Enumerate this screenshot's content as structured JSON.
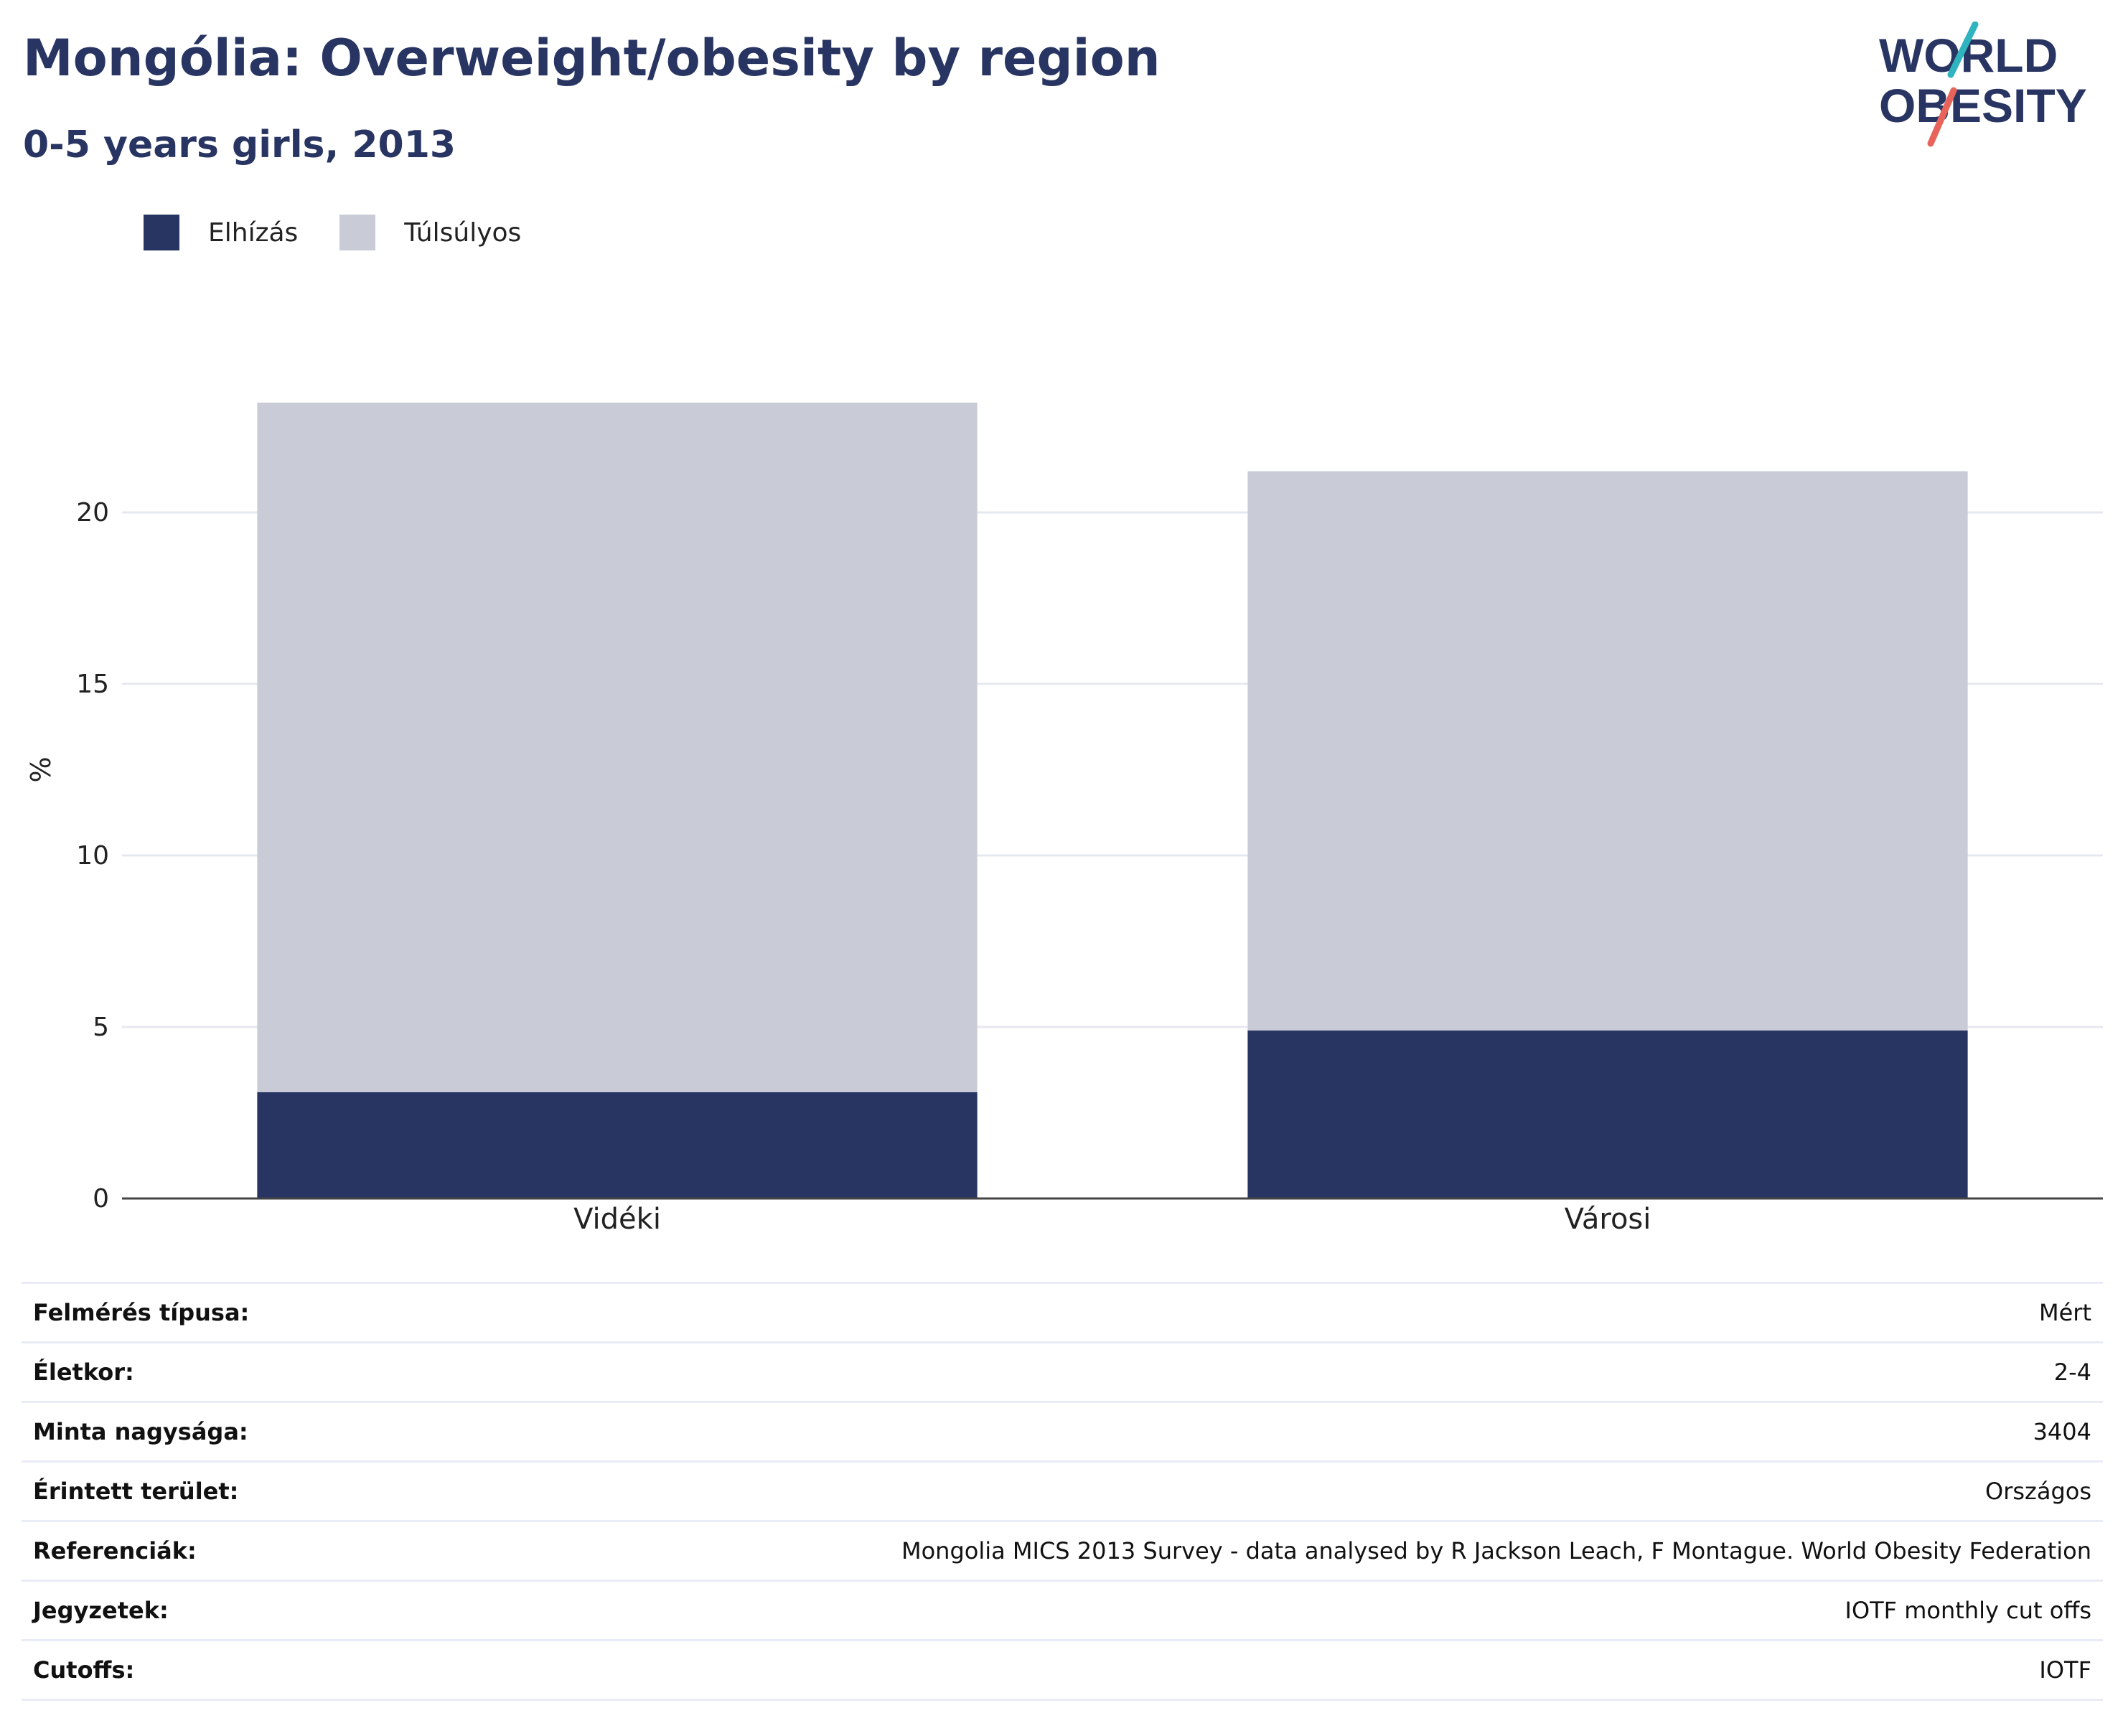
{
  "header": {
    "title": "Mongólia: Overweight/obesity by region",
    "subtitle": "0-5 years girls, 2013"
  },
  "logo": {
    "line1": "WORLD",
    "line2": "OBESITY",
    "slash_colors": [
      "#2fb3bf",
      "#e8645a"
    ]
  },
  "colors": {
    "obesity": "#283562",
    "overweight": "#c9ccd7",
    "text": "#283562",
    "grid": "#e6e8ef"
  },
  "chart_data": {
    "type": "bar",
    "stacked": true,
    "categories": [
      "Vidéki",
      "Városi"
    ],
    "series": [
      {
        "name": "Elhízás",
        "values": [
          3.1,
          4.9
        ]
      },
      {
        "name": "Túlsúlyos",
        "values": [
          20.1,
          16.3
        ]
      }
    ],
    "title": "Mongólia: Overweight/obesity by region",
    "subtitle": "0-5 years girls, 2013",
    "ylabel": "%",
    "xlabel": "",
    "ylim": [
      0,
      25
    ],
    "yticks": [
      0,
      5,
      10,
      15,
      20
    ],
    "grid": true,
    "legend": "top-left"
  },
  "info_table": [
    {
      "label": "Felmérés típusa:",
      "value": "Mért"
    },
    {
      "label": "Életkor:",
      "value": "2-4"
    },
    {
      "label": "Minta nagysága:",
      "value": "3404"
    },
    {
      "label": "Érintett terület:",
      "value": "Országos"
    },
    {
      "label": "Referenciák:",
      "value": "Mongolia MICS 2013 Survey - data analysed by R Jackson Leach, F Montague. World Obesity Federation"
    },
    {
      "label": "Jegyzetek:",
      "value": "IOTF monthly cut offs"
    },
    {
      "label": "Cutoffs:",
      "value": "IOTF"
    }
  ]
}
